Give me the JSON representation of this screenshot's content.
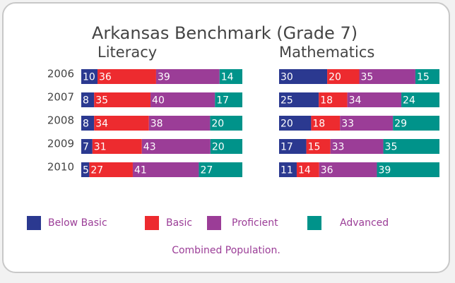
{
  "title": "Arkansas Benchmark (Grade 7)",
  "note": "Combined Population.",
  "chart_data": [
    {
      "type": "stacked-bar-horizontal",
      "title": "Literacy",
      "categories": [
        "2006",
        "2007",
        "2008",
        "2009",
        "2010"
      ],
      "series": [
        {
          "name": "Below Basic",
          "color": "#2b3990",
          "values": [
            10,
            8,
            8,
            7,
            5
          ]
        },
        {
          "name": "Basic",
          "color": "#ed2b2f",
          "values": [
            36,
            35,
            34,
            31,
            27
          ]
        },
        {
          "name": "Proficient",
          "color": "#9b3d97",
          "values": [
            39,
            40,
            38,
            43,
            41
          ]
        },
        {
          "name": "Advanced",
          "color": "#00938a",
          "values": [
            14,
            17,
            20,
            20,
            27
          ]
        }
      ]
    },
    {
      "type": "stacked-bar-horizontal",
      "title": "Mathematics",
      "series": [
        {
          "name": "Below Basic",
          "color": "#2b3990",
          "values": [
            30,
            25,
            20,
            17,
            11
          ]
        },
        {
          "name": "Basic",
          "color": "#ed2b2f",
          "values": [
            20,
            18,
            18,
            15,
            14
          ]
        },
        {
          "name": "Proficient",
          "color": "#9b3d97",
          "values": [
            35,
            34,
            33,
            33,
            36
          ]
        },
        {
          "name": "Advanced",
          "color": "#00938a",
          "values": [
            15,
            24,
            29,
            35,
            39
          ]
        }
      ]
    }
  ]
}
